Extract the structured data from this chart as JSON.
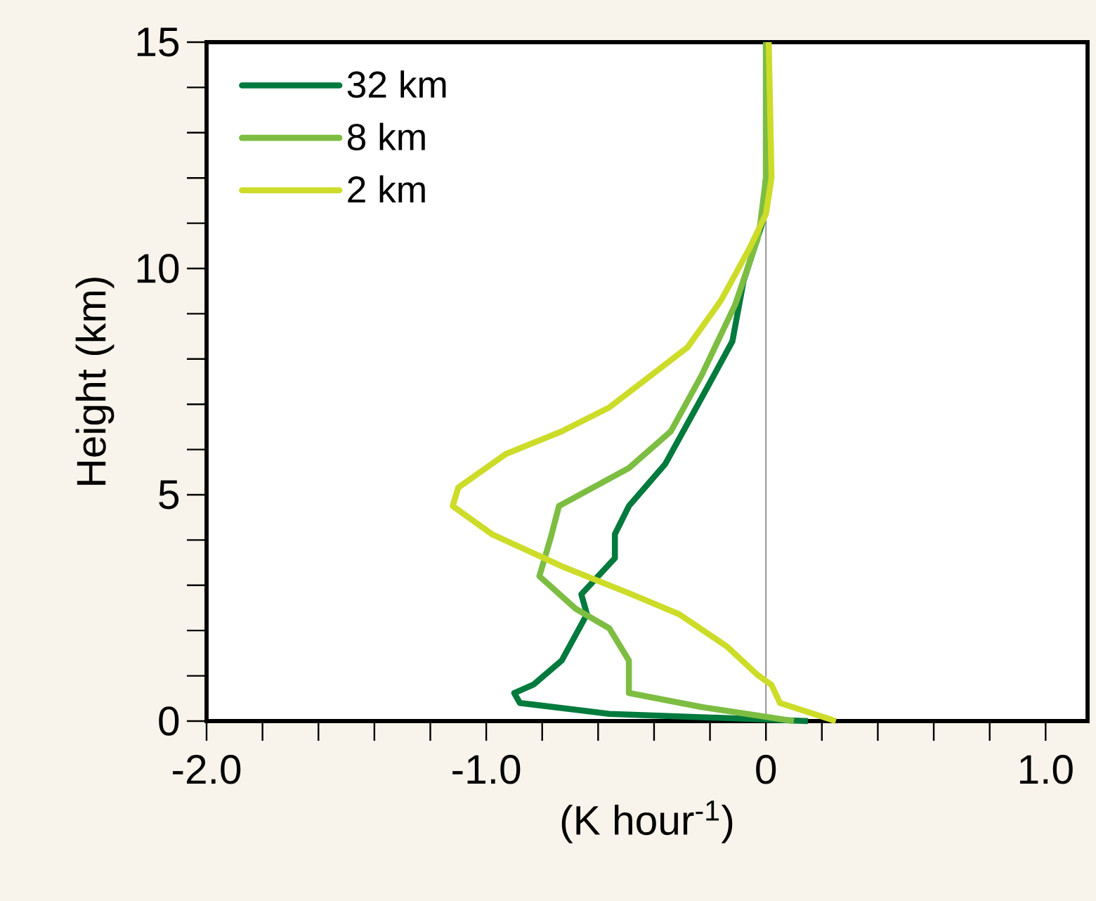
{
  "chart_data": {
    "type": "line",
    "xlabel": "(K hour$^{-1}$)",
    "ylabel": "Height (km)",
    "xlim": [
      -2.0,
      1.15
    ],
    "ylim": [
      0,
      15
    ],
    "xticks": [
      {
        "value": -2.0,
        "label": "-2.0"
      },
      {
        "value": -1.8,
        "label": null
      },
      {
        "value": -1.6,
        "label": null
      },
      {
        "value": -1.4,
        "label": null
      },
      {
        "value": -1.2,
        "label": null
      },
      {
        "value": -1.0,
        "label": "-1.0"
      },
      {
        "value": -0.8,
        "label": null
      },
      {
        "value": -0.6,
        "label": null
      },
      {
        "value": -0.4,
        "label": null
      },
      {
        "value": -0.2,
        "label": null
      },
      0,
      {
        "value": 0.2,
        "label": null
      },
      {
        "value": 0.4,
        "label": null
      },
      {
        "value": 0.6,
        "label": null
      },
      {
        "value": 0.8,
        "label": null
      },
      {
        "value": 1.0,
        "label": "1.0"
      }
    ],
    "yticks": [
      0,
      {
        "value": 1,
        "label": null
      },
      {
        "value": 2,
        "label": null
      },
      {
        "value": 3,
        "label": null
      },
      {
        "value": 4,
        "label": null
      },
      5,
      {
        "value": 6,
        "label": null
      },
      {
        "value": 7,
        "label": null
      },
      {
        "value": 8,
        "label": null
      },
      {
        "value": 9,
        "label": null
      },
      10,
      {
        "value": 11,
        "label": null
      },
      {
        "value": 12,
        "label": null
      },
      {
        "value": 13,
        "label": null
      },
      {
        "value": 14,
        "label": null
      },
      15
    ],
    "legend": "top left",
    "ref_lines": [
      {
        "axis": "x",
        "value": 0,
        "color": "#808080"
      }
    ],
    "series": [
      {
        "name": "32 km",
        "color": "#007a3d",
        "x": [
          0.15,
          -0.56,
          -0.88,
          -0.9,
          -0.83,
          -0.73,
          -0.64,
          -0.66,
          -0.54,
          -0.54,
          -0.49,
          -0.36,
          -0.23,
          -0.12,
          -0.08,
          -0.01,
          0.0,
          0.0
        ],
        "values": [
          0,
          0.16,
          0.4,
          0.62,
          0.81,
          1.34,
          2.36,
          2.8,
          3.6,
          4.13,
          4.75,
          5.68,
          7.14,
          8.39,
          9.72,
          11.06,
          12,
          15
        ]
      },
      {
        "name": "8 km",
        "color": "#7dbd42",
        "x": [
          0.1,
          -0.23,
          -0.49,
          -0.49,
          -0.56,
          -0.68,
          -0.81,
          -0.77,
          -0.74,
          -0.49,
          -0.34,
          -0.23,
          -0.11,
          -0.03,
          -0.02,
          0.0,
          0.0
        ],
        "values": [
          0,
          0.31,
          0.62,
          1.34,
          2.05,
          2.48,
          3.2,
          4.04,
          4.75,
          5.59,
          6.4,
          7.64,
          9.2,
          10.65,
          11,
          12,
          15
        ]
      },
      {
        "name": "2 km",
        "color": "#cddc29",
        "x": [
          0.25,
          0.05,
          0.02,
          -0.03,
          -0.14,
          -0.31,
          -0.48,
          -0.73,
          -0.98,
          -1.12,
          -1.1,
          -0.93,
          -0.73,
          -0.56,
          -0.41,
          -0.28,
          -0.16,
          -0.06,
          0.0,
          0.02,
          0.01
        ],
        "values": [
          0,
          0.4,
          0.8,
          1.02,
          1.65,
          2.36,
          2.8,
          3.42,
          4.13,
          4.75,
          5.16,
          5.9,
          6.4,
          6.93,
          7.64,
          8.26,
          9.3,
          10.43,
          11.2,
          12,
          15
        ]
      }
    ]
  }
}
